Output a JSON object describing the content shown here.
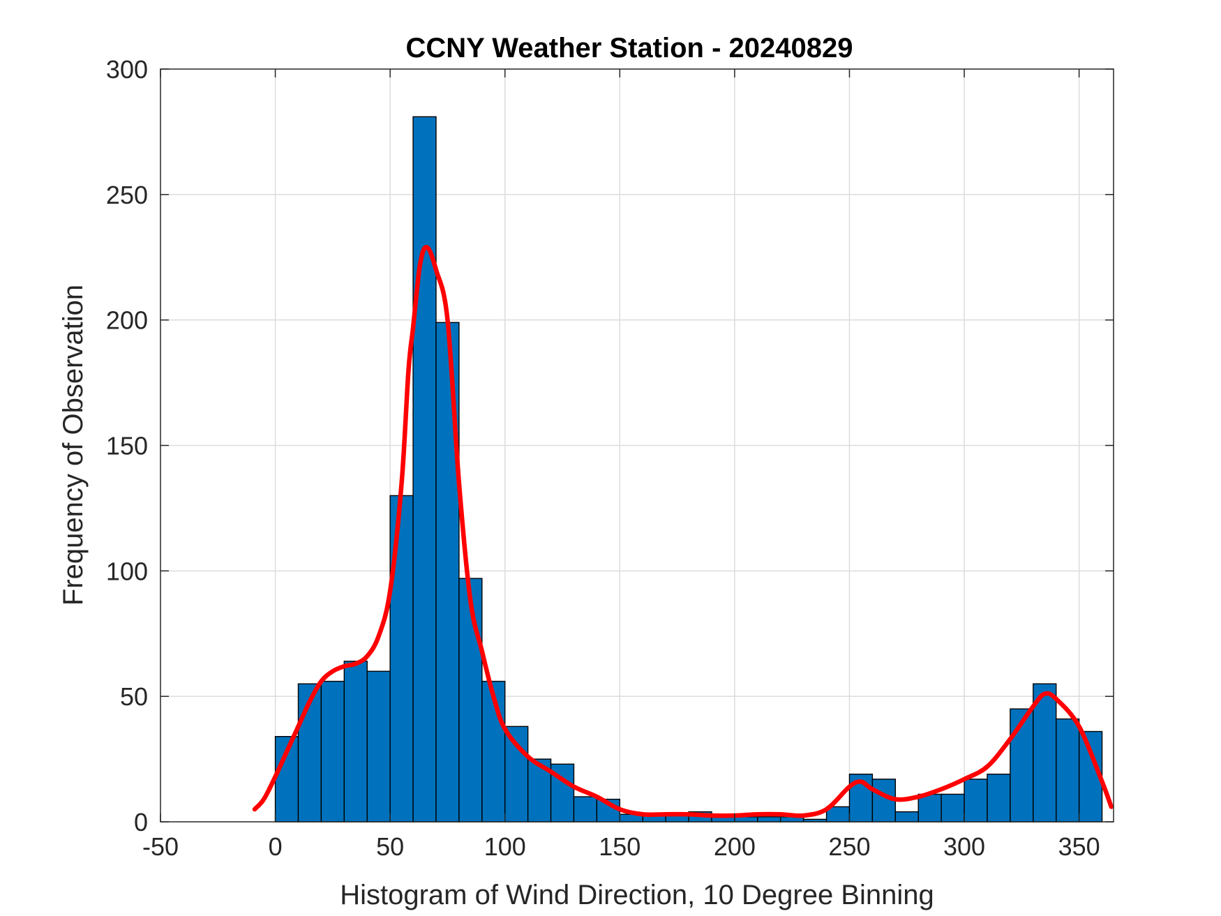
{
  "chart_data": {
    "type": "bar",
    "title": "CCNY Weather Station - 20240829",
    "xlabel": "Histogram of Wind Direction, 10 Degree Binning",
    "ylabel": "Frequency of Observation",
    "xlim": [
      -50,
      365
    ],
    "ylim": [
      0,
      300
    ],
    "xticks": [
      -50,
      0,
      50,
      100,
      150,
      200,
      250,
      300,
      350
    ],
    "yticks": [
      0,
      50,
      100,
      150,
      200,
      250,
      300
    ],
    "grid": true,
    "bin_width": 10,
    "bin_edges_start": [
      0,
      10,
      20,
      30,
      40,
      50,
      60,
      70,
      80,
      90,
      100,
      110,
      120,
      130,
      140,
      150,
      160,
      170,
      180,
      190,
      200,
      210,
      220,
      230,
      240,
      250,
      260,
      270,
      280,
      290,
      300,
      310,
      320,
      330,
      340,
      350
    ],
    "counts": [
      34,
      55,
      56,
      64,
      60,
      130,
      281,
      199,
      97,
      56,
      38,
      25,
      23,
      10,
      9,
      3,
      3,
      3,
      4,
      2,
      2,
      2,
      2,
      1,
      6,
      19,
      17,
      4,
      11,
      11,
      17,
      19,
      45,
      55,
      41,
      36
    ],
    "series": [
      {
        "type": "line",
        "color": "#ff0000",
        "x": [
          -9,
          -5,
          0,
          5,
          10,
          15,
          20,
          25,
          30,
          35,
          40,
          45,
          50,
          55,
          58,
          60,
          63,
          66,
          70,
          75,
          80,
          85,
          90,
          95,
          100,
          110,
          120,
          130,
          140,
          150,
          160,
          170,
          180,
          190,
          200,
          210,
          220,
          230,
          240,
          250,
          255,
          260,
          270,
          280,
          290,
          300,
          310,
          320,
          330,
          335,
          340,
          350,
          360,
          364
        ],
        "y": [
          5,
          9,
          18,
          28,
          38,
          48,
          56,
          60,
          62,
          63,
          66,
          74,
          92,
          135,
          180,
          197,
          222,
          229,
          220,
          200,
          135,
          88,
          68,
          50,
          37,
          26,
          20,
          14,
          10,
          5,
          3,
          3,
          3,
          2.5,
          2.5,
          3,
          3,
          2.5,
          5,
          14,
          16,
          13,
          9,
          10,
          13,
          17,
          22,
          33,
          46,
          51,
          49,
          38,
          16,
          6
        ]
      }
    ],
    "bar_color": "#0072bd",
    "bar_edge_color": "#000000"
  }
}
